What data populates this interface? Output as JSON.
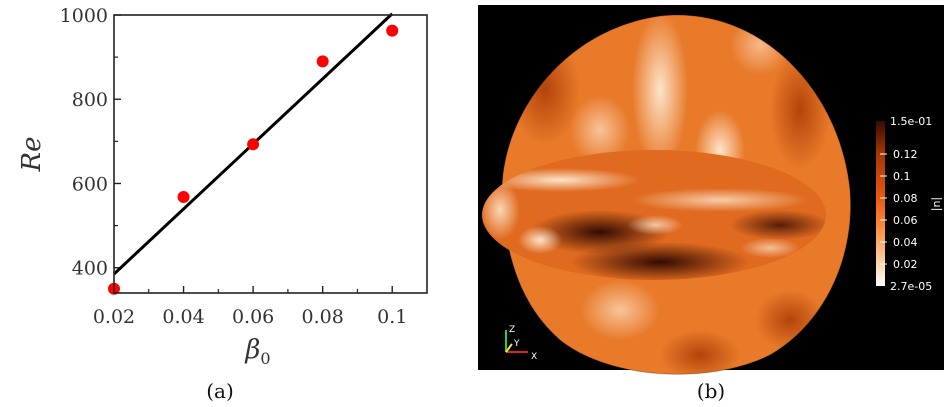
{
  "chart_data": [
    {
      "type": "scatter",
      "title": "",
      "xlabel": "β",
      "xlabel_sub": "0",
      "ylabel": "Re",
      "xlim": [
        0.02,
        0.11
      ],
      "ylim": [
        340,
        1000
      ],
      "xticks": [
        "0.02",
        "0.04",
        "0.06",
        "0.08",
        "0.1"
      ],
      "xtick_values": [
        0.02,
        0.04,
        0.06,
        0.08,
        0.1
      ],
      "yticks": [
        "400",
        "600",
        "800",
        "1000"
      ],
      "ytick_values": [
        400,
        600,
        800,
        1000
      ],
      "grid": false,
      "series": [
        {
          "type": "scatter",
          "color": "#ff0000",
          "points": [
            {
              "x": 0.02,
              "y": 350
            },
            {
              "x": 0.04,
              "y": 568
            },
            {
              "x": 0.06,
              "y": 693
            },
            {
              "x": 0.08,
              "y": 890
            },
            {
              "x": 0.1,
              "y": 963
            }
          ]
        },
        {
          "type": "line",
          "color": "#000000",
          "points": [
            {
              "x": 0.02,
              "y": 385
            },
            {
              "x": 0.1,
              "y": 1003
            }
          ]
        }
      ],
      "caption": "(a)"
    },
    {
      "type": "heatmap",
      "colorbar": {
        "title": "|u|",
        "max_label": "1.5e-01",
        "min_label": "2.7e-05",
        "tick_labels": [
          "0.12",
          "0.1",
          "0.08",
          "0.06",
          "0.04",
          "0.02"
        ],
        "tick_values": [
          0.12,
          0.1,
          0.08,
          0.06,
          0.04,
          0.02
        ],
        "min": 2.7e-05,
        "max": 0.15,
        "colors": [
          "#ffffff",
          "#fdd0a2",
          "#fd8d3c",
          "#e6550d",
          "#a63603",
          "#3a0a00"
        ]
      },
      "axes_triad": [
        "Z",
        "Y",
        "X"
      ],
      "caption": "(b)"
    }
  ]
}
